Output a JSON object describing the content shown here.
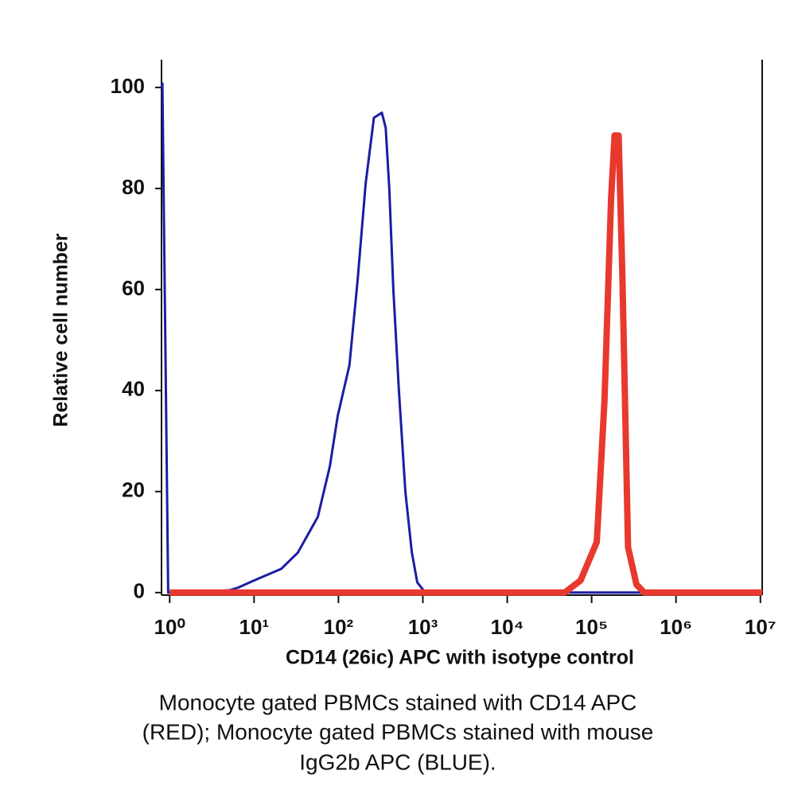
{
  "chart_data": {
    "type": "line",
    "x_label": "CD14 (26ic) APC with isotype control",
    "y_label": "Relative cell number",
    "caption": [
      "Monocyte gated PBMCs stained with CD14 APC",
      "(RED); Monocyte gated PBMCs stained with mouse",
      "IgG2b APC (BLUE)."
    ],
    "x_log": true,
    "xlim": [
      0.8,
      10500000
    ],
    "ylim": [
      -0.5,
      105.5
    ],
    "xticks": [
      {
        "value": 1,
        "label": "10⁰"
      },
      {
        "value": 10,
        "label": "10¹"
      },
      {
        "value": 100,
        "label": "10²"
      },
      {
        "value": 1000,
        "label": "10³"
      },
      {
        "value": 10000,
        "label": "10⁴"
      },
      {
        "value": 100000,
        "label": "10⁵"
      },
      {
        "value": 1000000,
        "label": "10⁶"
      },
      {
        "value": 10000000,
        "label": "10⁷"
      }
    ],
    "yticks": [
      0,
      20,
      40,
      60,
      80,
      100
    ],
    "grid": false,
    "series": [
      {
        "color": "#1c1ca6",
        "width": 3,
        "x": [
          0.82,
          0.96,
          2.4,
          5.2,
          6.5,
          10,
          21,
          33,
          57,
          79,
          98,
          135,
          169,
          210,
          263,
          327,
          363,
          400,
          447,
          520,
          620,
          740,
          860,
          1070,
          10500000
        ],
        "values": [
          101,
          0,
          0,
          0.5,
          1,
          2.4,
          4.7,
          7.9,
          15,
          25,
          35,
          45,
          62,
          81,
          94,
          95,
          92,
          80,
          60,
          40,
          20,
          8,
          2,
          0,
          0
        ]
      },
      {
        "color": "#e8392e",
        "width": 8,
        "x": [
          1,
          48000,
          74000,
          115000,
          142000,
          170000,
          187000,
          209000,
          232000,
          270000,
          340000,
          420000,
          10500000
        ],
        "values": [
          0,
          0,
          2.4,
          10,
          38,
          78,
          90.5,
          90.5,
          62,
          9,
          1.6,
          0,
          0
        ]
      }
    ]
  }
}
